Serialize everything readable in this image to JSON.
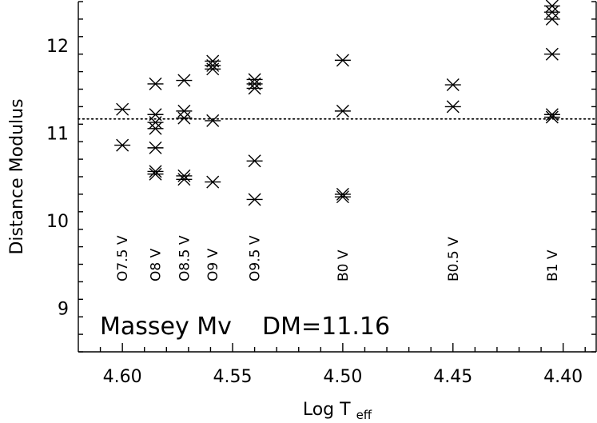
{
  "chart_data": {
    "type": "scatter",
    "title": "",
    "xlabel": "Log T",
    "xlabel_sub": "eff",
    "ylabel": "Distance Modulus",
    "xlim": [
      4.62,
      4.385
    ],
    "ylim": [
      8.5,
      12.5
    ],
    "x_inverted": true,
    "xticks": [
      4.6,
      4.55,
      4.5,
      4.45,
      4.4
    ],
    "xtick_labels": [
      "4.60",
      "4.55",
      "4.50",
      "4.45",
      "4.40"
    ],
    "yticks": [
      9,
      10,
      11,
      12
    ],
    "ytick_labels": [
      "9",
      "10",
      "11",
      "12"
    ],
    "grid": false,
    "marker": "asterisk",
    "series": [
      {
        "points": [
          [
            4.6,
            11.27
          ],
          [
            4.6,
            10.86
          ],
          [
            4.585,
            11.56
          ],
          [
            4.585,
            11.21
          ],
          [
            4.585,
            11.12
          ],
          [
            4.585,
            11.05
          ],
          [
            4.585,
            10.83
          ],
          [
            4.585,
            10.56
          ],
          [
            4.585,
            10.53
          ],
          [
            4.572,
            11.6
          ],
          [
            4.572,
            11.25
          ],
          [
            4.572,
            11.17
          ],
          [
            4.572,
            10.51
          ],
          [
            4.572,
            10.47
          ],
          [
            4.559,
            11.82
          ],
          [
            4.559,
            11.77
          ],
          [
            4.559,
            11.73
          ],
          [
            4.559,
            11.14
          ],
          [
            4.559,
            10.44
          ],
          [
            4.54,
            11.61
          ],
          [
            4.54,
            11.56
          ],
          [
            4.54,
            11.51
          ],
          [
            4.54,
            10.68
          ],
          [
            4.54,
            10.24
          ],
          [
            4.5,
            11.83
          ],
          [
            4.5,
            11.25
          ],
          [
            4.5,
            10.3
          ],
          [
            4.5,
            10.27
          ],
          [
            4.45,
            11.55
          ],
          [
            4.45,
            11.3
          ],
          [
            4.405,
            12.45
          ],
          [
            4.405,
            12.38
          ],
          [
            4.405,
            12.3
          ],
          [
            4.405,
            11.9
          ],
          [
            4.405,
            11.21
          ],
          [
            4.405,
            11.18
          ]
        ]
      }
    ],
    "reference_line": {
      "y": 11.16,
      "style": "dotted"
    },
    "spectral_types": [
      {
        "label": "O7.5 V",
        "x": 4.6
      },
      {
        "label": "O8 V",
        "x": 4.585
      },
      {
        "label": "O8.5 V",
        "x": 4.572
      },
      {
        "label": "O9 V",
        "x": 4.559
      },
      {
        "label": "O9.5 V",
        "x": 4.54
      },
      {
        "label": "B0 V",
        "x": 4.5
      },
      {
        "label": "B0.5 V",
        "x": 4.45
      },
      {
        "label": "B1 V",
        "x": 4.405
      }
    ],
    "annotation": "Massey Mv    DM=11.16"
  }
}
